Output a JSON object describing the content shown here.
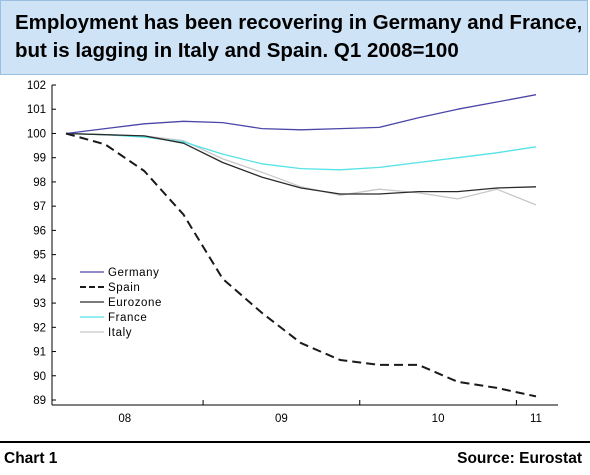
{
  "header": {
    "title_line1": "Employment has been recovering in Germany and France,",
    "title_line2": "but is lagging in Italy and Spain. Q1 2008=100"
  },
  "footer": {
    "left": "Chart 1",
    "right": "Source: Eurostat"
  },
  "colors": {
    "header_background": "#cfe3f7",
    "germany": "#4b46a8",
    "spain": "#1a1a1a",
    "eurozone": "#2a2a2a",
    "france": "#55e3e6",
    "italy": "#c8c8c8"
  },
  "chart_data": {
    "type": "line",
    "title": "Employment has been recovering in Germany and France, but is lagging in Italy and Spain. Q1 2008=100",
    "xlabel": "",
    "ylabel": "",
    "ylim": [
      89,
      102
    ],
    "yticks": [
      89,
      90,
      91,
      92,
      93,
      94,
      95,
      96,
      97,
      98,
      99,
      100,
      101,
      102
    ],
    "xticks": [
      "08",
      "09",
      "10",
      "11"
    ],
    "x": [
      "2008Q1",
      "2008Q2",
      "2008Q3",
      "2008Q4",
      "2009Q1",
      "2009Q2",
      "2009Q3",
      "2009Q4",
      "2010Q1",
      "2010Q2",
      "2010Q3",
      "2010Q4",
      "2011Q1"
    ],
    "grid": false,
    "legend_position": "lower-left",
    "series": [
      {
        "name": "Germany",
        "color": "#4b46a8",
        "dash": "solid",
        "values": [
          100.0,
          100.2,
          100.4,
          100.5,
          100.45,
          100.2,
          100.15,
          100.2,
          100.25,
          100.65,
          101.0,
          101.3,
          101.6
        ]
      },
      {
        "name": "Spain",
        "color": "#1a1a1a",
        "dash": "dashed",
        "values": [
          100.0,
          99.55,
          98.45,
          96.65,
          94.0,
          92.6,
          91.35,
          90.65,
          90.45,
          90.45,
          89.75,
          89.5,
          89.15
        ]
      },
      {
        "name": "Eurozone",
        "color": "#2a2a2a",
        "dash": "solid",
        "values": [
          100.0,
          99.95,
          99.9,
          99.6,
          98.8,
          98.2,
          97.75,
          97.5,
          97.5,
          97.6,
          97.6,
          97.75,
          97.8
        ]
      },
      {
        "name": "France",
        "color": "#55e3e6",
        "dash": "solid",
        "values": [
          100.0,
          99.95,
          99.85,
          99.65,
          99.15,
          98.75,
          98.55,
          98.5,
          98.6,
          98.8,
          99.0,
          99.2,
          99.45
        ]
      },
      {
        "name": "Italy",
        "color": "#c8c8c8",
        "dash": "solid",
        "values": [
          100.0,
          99.95,
          99.9,
          99.7,
          98.95,
          98.4,
          97.8,
          97.45,
          97.7,
          97.55,
          97.3,
          97.7,
          97.05
        ]
      }
    ]
  }
}
